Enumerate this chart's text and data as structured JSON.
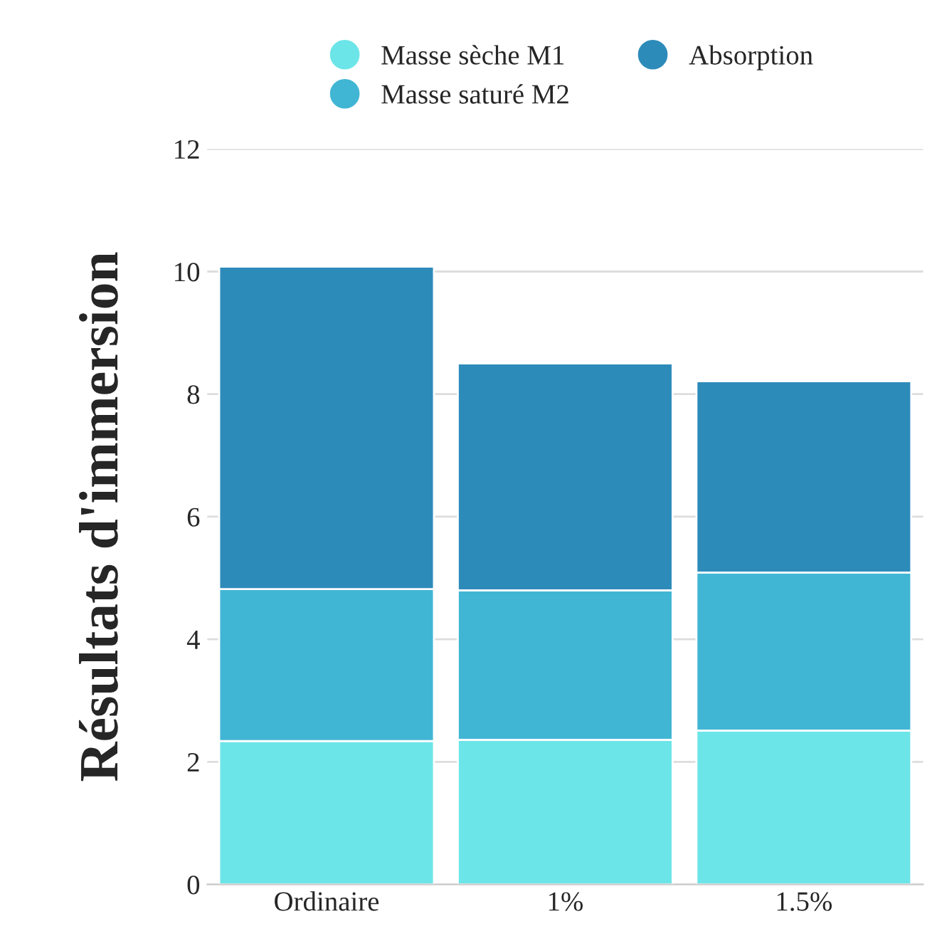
{
  "chart_data": {
    "type": "bar",
    "stacked": true,
    "ylabel": "Résultats d'immersion",
    "categories": [
      "Ordinaire",
      "1%",
      "1.5%"
    ],
    "series": [
      {
        "name": "Masse sèche M1",
        "color": "#6ce5e8",
        "values": [
          2.34,
          2.36,
          2.51
        ]
      },
      {
        "name": "Masse saturé M2",
        "color": "#41b6d4",
        "values": [
          2.48,
          2.44,
          2.58
        ]
      },
      {
        "name": "Absorption",
        "color": "#2d8bba",
        "values": [
          5.26,
          3.7,
          3.12
        ]
      }
    ],
    "ylim": [
      0,
      12
    ],
    "yticks": [
      0,
      2,
      4,
      6,
      8,
      10,
      12
    ],
    "grid": "y",
    "legend": "top"
  }
}
